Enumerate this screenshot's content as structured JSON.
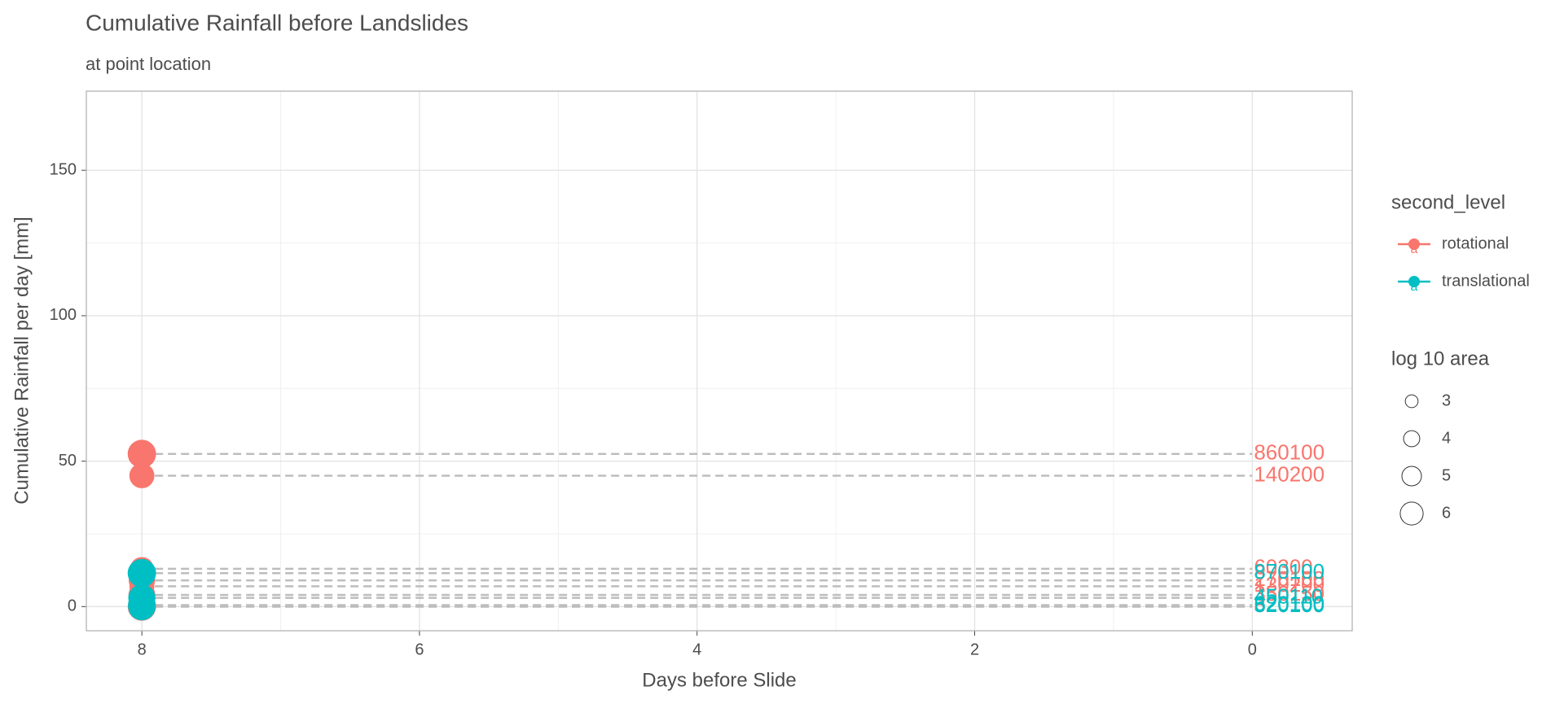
{
  "chart_data": {
    "type": "scatter",
    "title": "Cumulative Rainfall before Landslides",
    "subtitle": "at point location",
    "x_label": "Days before Slide",
    "y_label": "Cumulative Rainfall per day [mm]",
    "xlim": [
      8.4,
      -0.72
    ],
    "xticks": [
      8,
      6,
      4,
      2,
      0
    ],
    "ylim": [
      -8.3,
      177.2
    ],
    "yticks": [
      0,
      50,
      100,
      150
    ],
    "grid": true,
    "color_legend_title": "second_level",
    "size_legend_title": "log 10 area",
    "size_legend_values": [
      3,
      4,
      5,
      6
    ],
    "series": [
      {
        "name": "rotational",
        "color": "#F8766D",
        "x": [
          8,
          8,
          8,
          8,
          8,
          8,
          8
        ],
        "values": [
          52.5,
          45,
          13,
          9,
          7,
          4,
          0
        ],
        "areas": [
          860100,
          140200,
          60300,
          270100,
          130200,
          350150,
          820100
        ]
      },
      {
        "name": "translational",
        "color": "#00BFC4",
        "x": [
          8,
          8,
          8,
          8
        ],
        "values": [
          11.5,
          3,
          0.5,
          0
        ],
        "areas": [
          870100,
          450110,
          620100,
          520100
        ]
      }
    ]
  }
}
